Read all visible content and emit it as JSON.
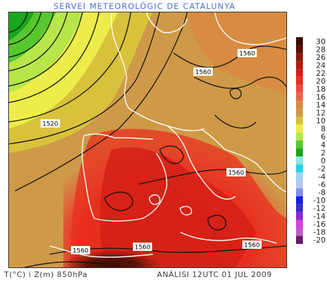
{
  "header": {
    "title": "SERVEI METEOROLÒGIC DE CATALUNYA"
  },
  "footer": {
    "parameters": "T(°C) i Z(m) 850hPa",
    "analysis": "ANÀLISI 12UTC 01 JUL 2009"
  },
  "map": {
    "contour_labels": [
      "1560",
      "1560",
      "1520",
      "1560",
      "1560",
      "1560",
      "1560"
    ]
  },
  "legend": {
    "title": "",
    "entries": [
      {
        "value": "30",
        "color": "#3b0d05"
      },
      {
        "value": "28",
        "color": "#5c1208"
      },
      {
        "value": "26",
        "color": "#8a1a0c"
      },
      {
        "value": "24",
        "color": "#b51c12"
      },
      {
        "value": "22",
        "color": "#d42018"
      },
      {
        "value": "20",
        "color": "#e8301f"
      },
      {
        "value": "18",
        "color": "#ef4a3c"
      },
      {
        "value": "16",
        "color": "#e9654a"
      },
      {
        "value": "14",
        "color": "#d98b40"
      },
      {
        "value": "12",
        "color": "#ce9a48"
      },
      {
        "value": "10",
        "color": "#d8c23c"
      },
      {
        "value": "8",
        "color": "#ecec4a"
      },
      {
        "value": "6",
        "color": "#b6e64a"
      },
      {
        "value": "4",
        "color": "#56c82e"
      },
      {
        "value": "2",
        "color": "#1aa51e"
      },
      {
        "value": "0",
        "color": "#8ee8dd"
      },
      {
        "value": "-2",
        "color": "#1fd4e8"
      },
      {
        "value": "-4",
        "color": "#9cd6f0"
      },
      {
        "value": "-6",
        "color": "#b7c7f0"
      },
      {
        "value": "-8",
        "color": "#7e92ee"
      },
      {
        "value": "-10",
        "color": "#1420e6"
      },
      {
        "value": "-12",
        "color": "#3a2acb"
      },
      {
        "value": "-14",
        "color": "#8a2ad6"
      },
      {
        "value": "-16",
        "color": "#d640d6"
      },
      {
        "value": "-18",
        "color": "#c05ac7"
      },
      {
        "value": "-20",
        "color": "#6a1a6a"
      }
    ]
  }
}
